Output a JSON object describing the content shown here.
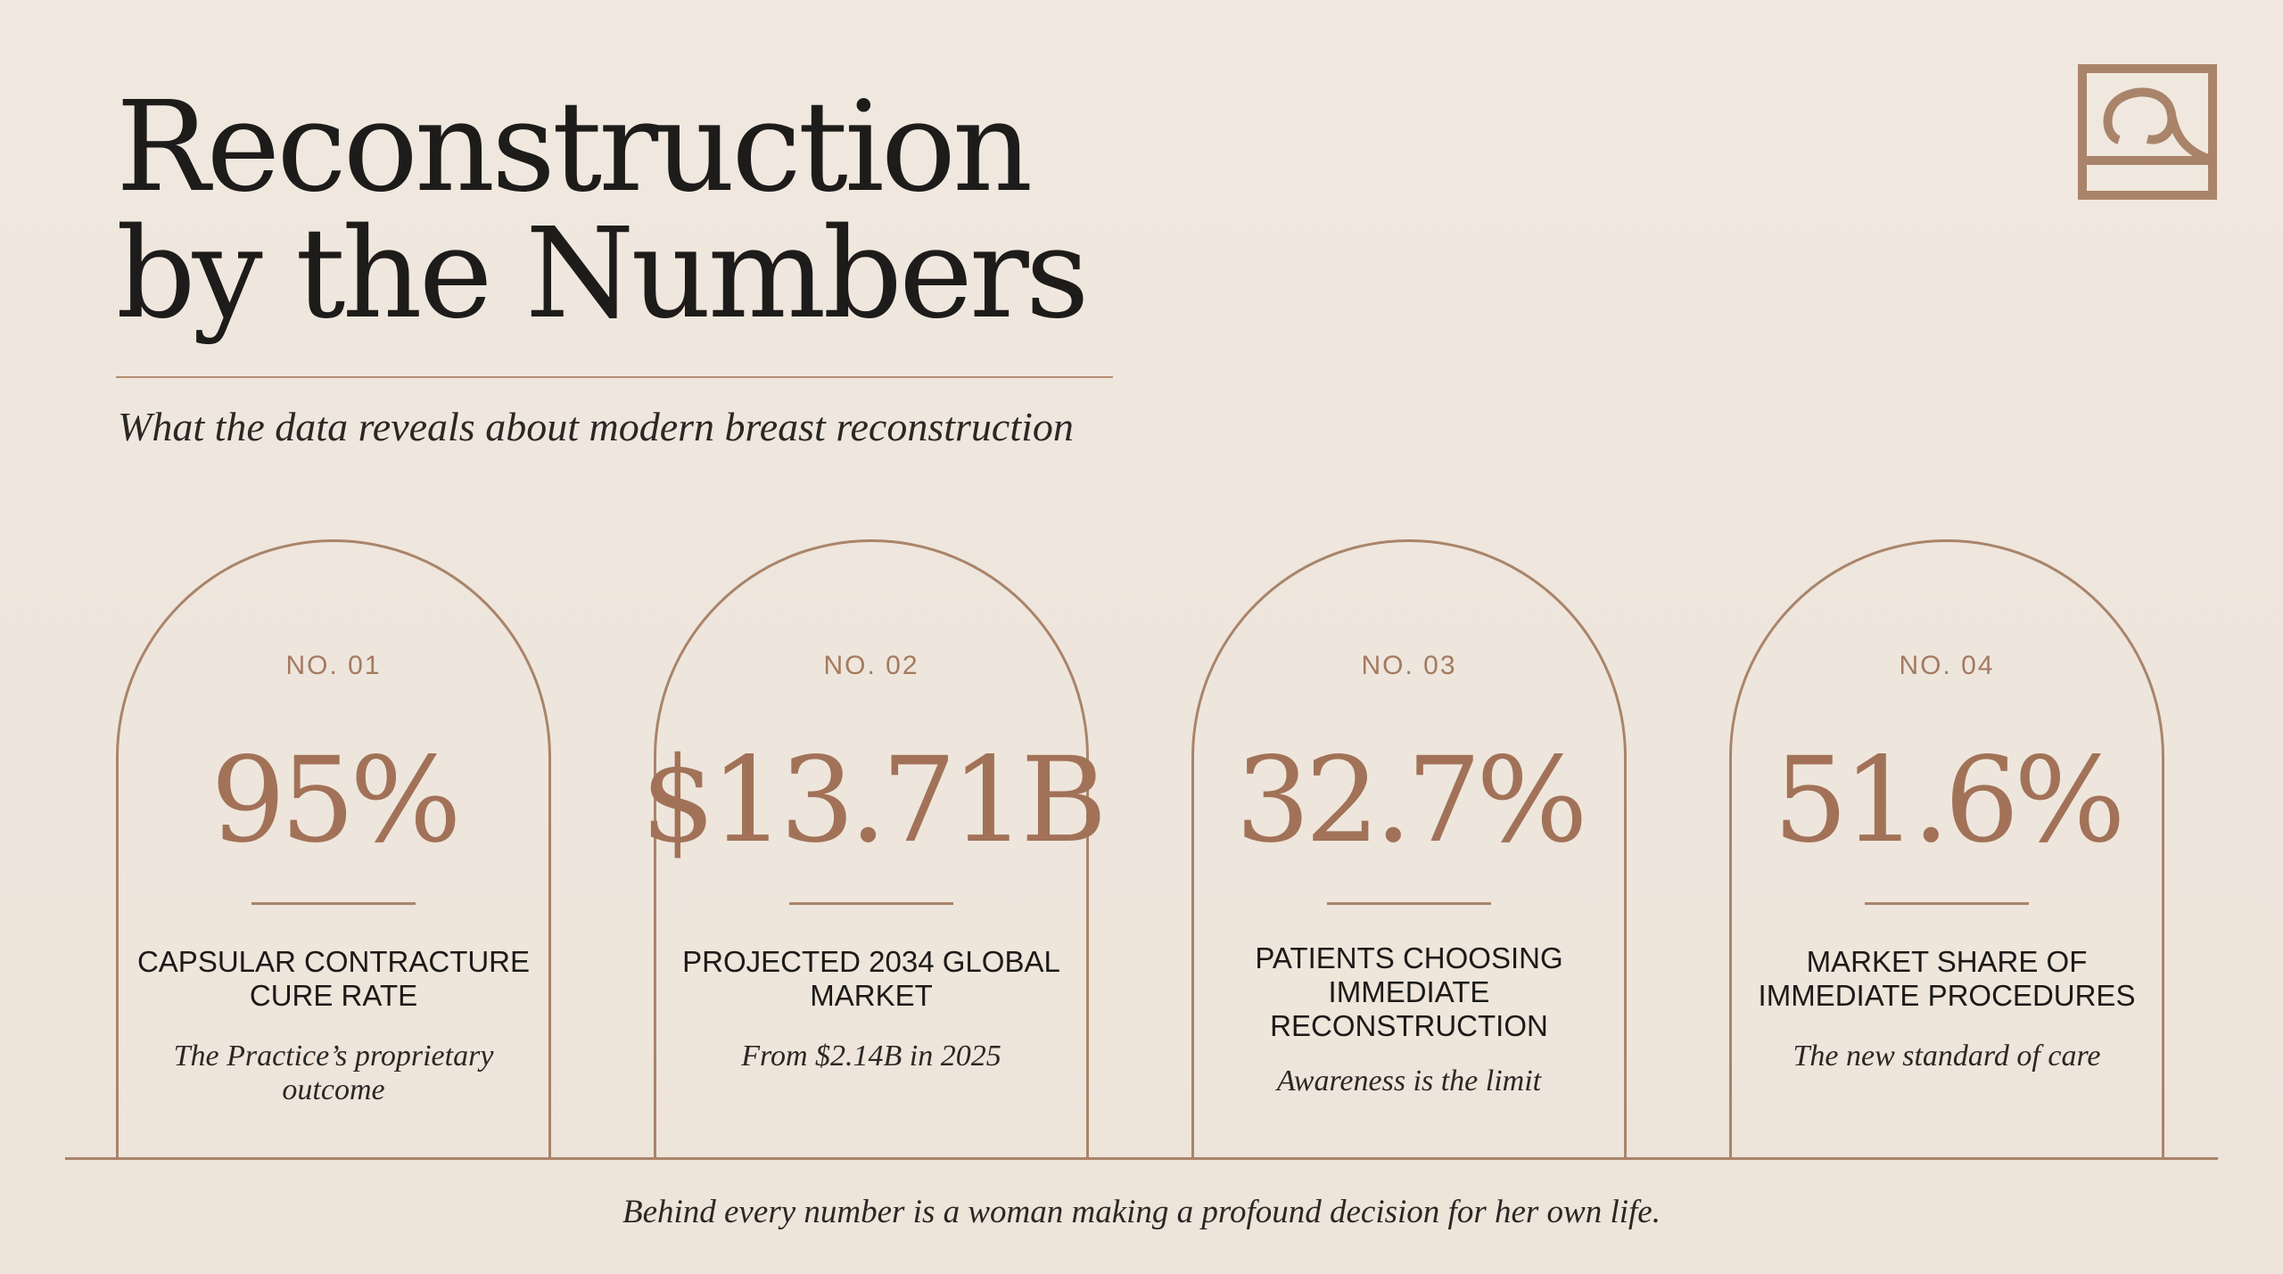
{
  "header": {
    "title_line1": "Reconstruction",
    "title_line2": "by the Numbers",
    "subtitle": "What the data reveals about modern breast reconstruction",
    "logo_icon": "monogram-logo-icon"
  },
  "colors": {
    "background": "#efe6dd",
    "accent": "#a9846a",
    "value": "#a27258",
    "text": "#1e1c1a"
  },
  "stats": [
    {
      "number": "NO. 01",
      "value": "95%",
      "label": "CAPSULAR CONTRACTURE CURE RATE",
      "note": "The Practice’s proprietary outcome"
    },
    {
      "number": "NO. 02",
      "value": "$13.71B",
      "label": "PROJECTED 2034 GLOBAL MARKET",
      "note": "From $2.14B in 2025"
    },
    {
      "number": "NO. 03",
      "value": "32.7%",
      "label": "PATIENTS CHOOSING IMMEDIATE RECONSTRUCTION",
      "note": "Awareness is the limit"
    },
    {
      "number": "NO. 04",
      "value": "51.6%",
      "label": "MARKET SHARE OF IMMEDIATE PROCEDURES",
      "note": "The new standard of care"
    }
  ],
  "footer": {
    "text": "Behind every number is a woman making a profound decision for her own life."
  }
}
